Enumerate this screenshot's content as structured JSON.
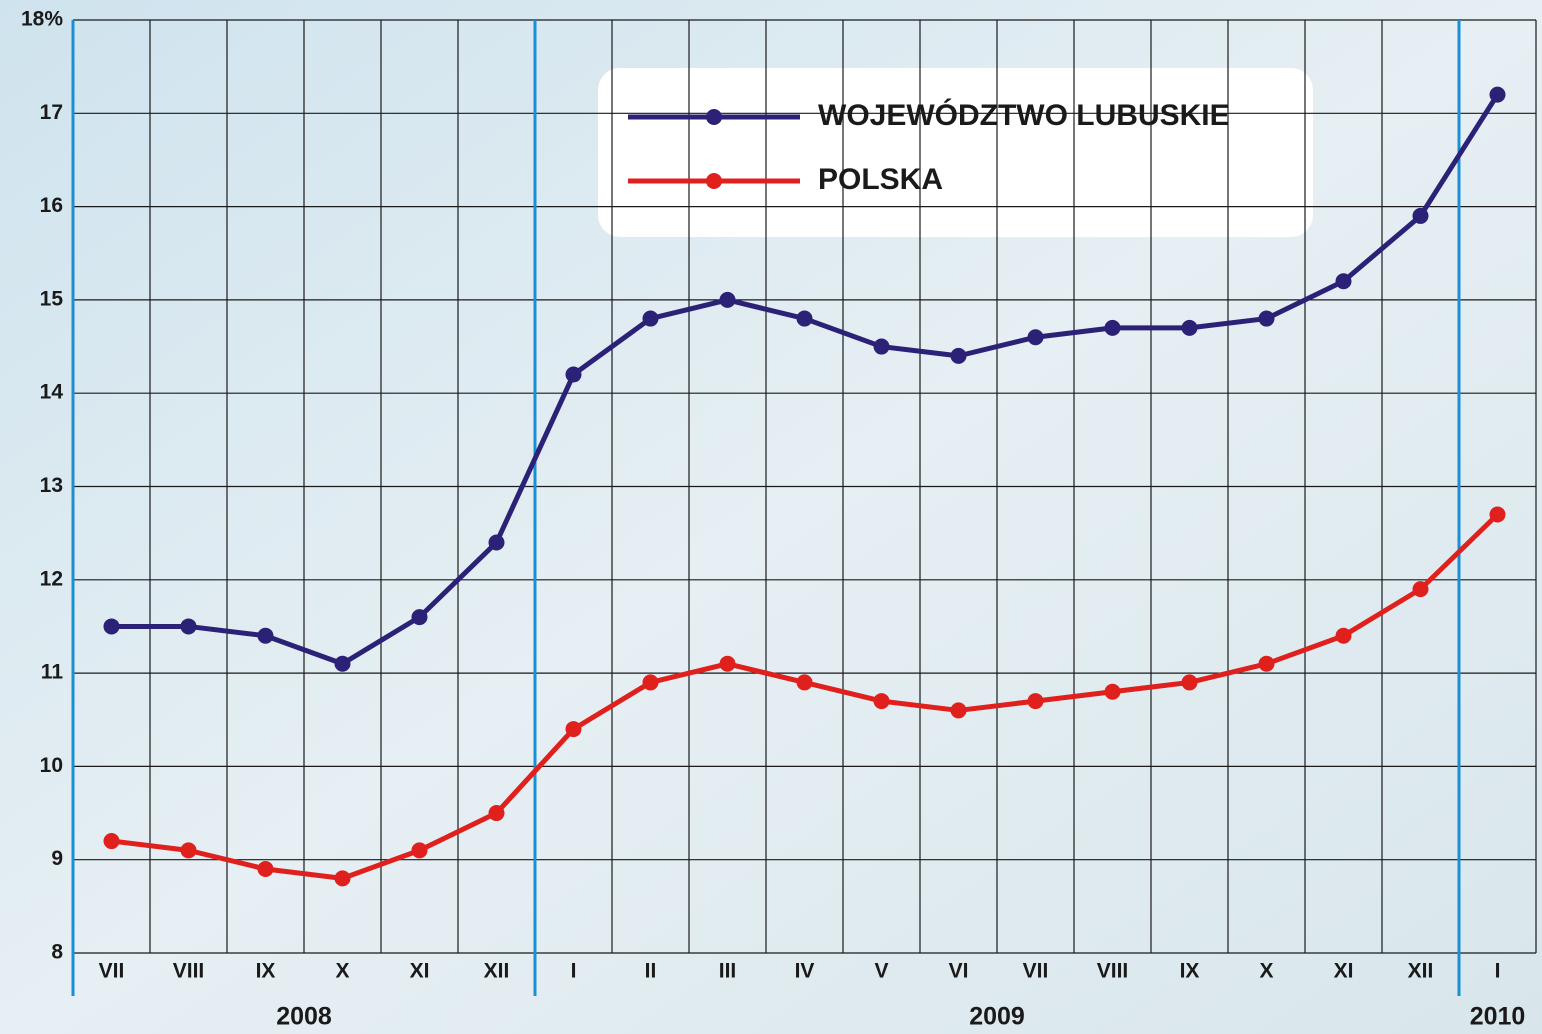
{
  "chart_data": {
    "type": "line",
    "groups": [
      {
        "label": "2008",
        "categories": [
          "VII",
          "VIII",
          "IX",
          "X",
          "XI",
          "XII"
        ]
      },
      {
        "label": "2009",
        "categories": [
          "I",
          "II",
          "III",
          "IV",
          "V",
          "VI",
          "VII",
          "VIII",
          "IX",
          "X",
          "XI",
          "XII"
        ]
      },
      {
        "label": "2010",
        "categories": [
          "I"
        ]
      }
    ],
    "series": [
      {
        "name": "WOJEWÓDZTWO LUBUSKIE",
        "color": "#2b2277",
        "values": [
          11.5,
          11.5,
          11.4,
          11.1,
          11.6,
          12.4,
          14.2,
          14.8,
          15.0,
          14.8,
          14.5,
          14.4,
          14.6,
          14.7,
          14.7,
          14.8,
          15.2,
          15.9,
          17.2
        ]
      },
      {
        "name": "POLSKA",
        "color": "#e0201c",
        "values": [
          9.2,
          9.1,
          8.9,
          8.8,
          9.1,
          9.5,
          10.4,
          10.9,
          11.1,
          10.9,
          10.7,
          10.6,
          10.7,
          10.8,
          10.9,
          11.1,
          11.4,
          11.9,
          12.7
        ]
      }
    ],
    "ylim": [
      8,
      18
    ],
    "yticks": [
      8,
      9,
      10,
      11,
      12,
      13,
      14,
      15,
      16,
      17,
      {
        "value": 18,
        "label": "18%"
      }
    ],
    "grid": true
  }
}
